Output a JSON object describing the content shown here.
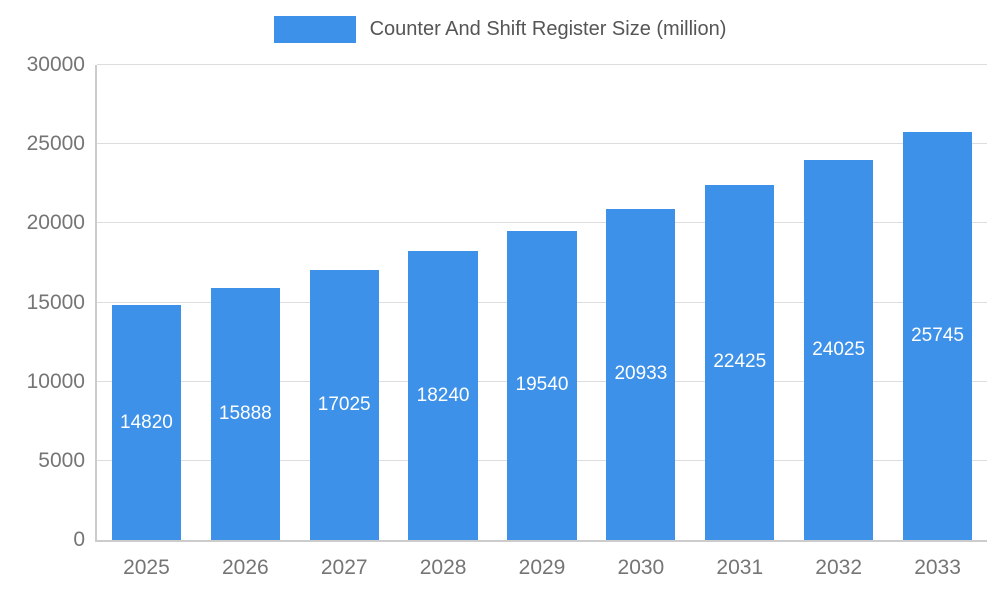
{
  "chart_data": {
    "type": "bar",
    "title": "Counter And Shift Register Size (million)",
    "categories": [
      "2025",
      "2026",
      "2027",
      "2028",
      "2029",
      "2030",
      "2031",
      "2032",
      "2033"
    ],
    "values": [
      14820,
      15888,
      17025,
      18240,
      19540,
      20933,
      22425,
      24025,
      25745
    ],
    "xlabel": "",
    "ylabel": "",
    "ylim": [
      0,
      30000
    ],
    "yticks": [
      0,
      5000,
      10000,
      15000,
      20000,
      25000,
      30000
    ],
    "grid": true,
    "legend_position": "top-center",
    "colors": {
      "bar": "#3d91e9",
      "value_label": "#ffffff",
      "axis_text": "#757575",
      "legend_text": "#555555",
      "gridline": "#dddddd",
      "axis_line": "#cccccc",
      "background": "#ffffff"
    }
  }
}
